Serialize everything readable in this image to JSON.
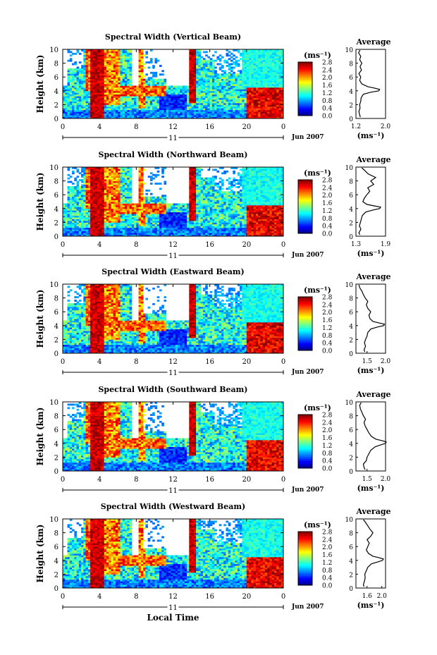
{
  "chart_data": {
    "type": "heatmap",
    "date_label": "Jun 2007",
    "day_label": "11",
    "xlabel_bottom": "Local Time",
    "x_ticks": [
      "0",
      "4",
      "8",
      "12",
      "16",
      "20",
      "0"
    ],
    "xlim": [
      0,
      24
    ],
    "ylabel": "Height (km)",
    "y_ticks": [
      "0",
      "2",
      "4",
      "6",
      "8",
      "10"
    ],
    "ylim": [
      0,
      10
    ],
    "colorbar": {
      "unit": "(ms⁻¹)",
      "range": [
        0.0,
        2.8
      ],
      "ticks": [
        "0.0",
        "0.4",
        "0.8",
        "1.2",
        "1.6",
        "2.0",
        "2.4",
        "2.8"
      ]
    },
    "average_title": "Average",
    "average_xlabel": "(ms⁻¹)",
    "panels": [
      {
        "title": "Spectral Width (Vertical Beam)",
        "avg_xlim": [
          1.2,
          2.0
        ],
        "avg_ticks": [
          "1.2",
          "2.0"
        ],
        "avg_profile": [
          [
            0.2,
            1.32
          ],
          [
            0.5,
            1.3
          ],
          [
            1.0,
            1.28
          ],
          [
            1.5,
            1.31
          ],
          [
            2.0,
            1.3
          ],
          [
            2.5,
            1.33
          ],
          [
            3.0,
            1.34
          ],
          [
            3.5,
            1.4
          ],
          [
            3.8,
            1.6
          ],
          [
            4.0,
            1.82
          ],
          [
            4.2,
            1.84
          ],
          [
            4.4,
            1.7
          ],
          [
            4.6,
            1.52
          ],
          [
            5.0,
            1.36
          ],
          [
            5.5,
            1.3
          ],
          [
            6.0,
            1.33
          ],
          [
            6.5,
            1.28
          ],
          [
            7.0,
            1.35
          ],
          [
            7.5,
            1.31
          ],
          [
            8.0,
            1.36
          ],
          [
            8.5,
            1.3
          ],
          [
            9.0,
            1.33
          ],
          [
            9.5,
            1.27
          ],
          [
            9.9,
            1.31
          ]
        ]
      },
      {
        "title": "Spectral Width (Northward Beam)",
        "avg_xlim": [
          1.3,
          1.9
        ],
        "avg_ticks": [
          "1.3",
          "1.9"
        ],
        "avg_profile": [
          [
            0.2,
            1.38
          ],
          [
            0.5,
            1.36
          ],
          [
            1.0,
            1.4
          ],
          [
            1.5,
            1.37
          ],
          [
            2.0,
            1.39
          ],
          [
            2.5,
            1.41
          ],
          [
            3.0,
            1.43
          ],
          [
            3.5,
            1.5
          ],
          [
            3.8,
            1.65
          ],
          [
            4.0,
            1.78
          ],
          [
            4.2,
            1.8
          ],
          [
            4.4,
            1.66
          ],
          [
            4.6,
            1.52
          ],
          [
            5.0,
            1.44
          ],
          [
            5.5,
            1.47
          ],
          [
            6.0,
            1.52
          ],
          [
            6.5,
            1.58
          ],
          [
            7.0,
            1.54
          ],
          [
            7.5,
            1.66
          ],
          [
            8.0,
            1.6
          ],
          [
            8.5,
            1.7
          ],
          [
            9.0,
            1.55
          ],
          [
            9.5,
            1.48
          ],
          [
            9.9,
            1.42
          ]
        ]
      },
      {
        "title": "Spectral Width (Eastward Beam)",
        "avg_xlim": [
          1.2,
          2.0
        ],
        "avg_ticks": [
          "1.5",
          "2.0"
        ],
        "avg_profile": [
          [
            0.2,
            1.44
          ],
          [
            0.5,
            1.42
          ],
          [
            1.0,
            1.46
          ],
          [
            1.5,
            1.43
          ],
          [
            2.0,
            1.46
          ],
          [
            2.5,
            1.5
          ],
          [
            3.0,
            1.52
          ],
          [
            3.5,
            1.6
          ],
          [
            3.8,
            1.78
          ],
          [
            4.0,
            1.95
          ],
          [
            4.2,
            1.97
          ],
          [
            4.4,
            1.82
          ],
          [
            4.6,
            1.66
          ],
          [
            5.0,
            1.58
          ],
          [
            5.5,
            1.55
          ],
          [
            6.0,
            1.6
          ],
          [
            6.5,
            1.52
          ],
          [
            7.0,
            1.48
          ],
          [
            7.5,
            1.52
          ],
          [
            8.0,
            1.45
          ],
          [
            8.5,
            1.4
          ],
          [
            9.0,
            1.36
          ],
          [
            9.5,
            1.3
          ],
          [
            9.9,
            1.28
          ]
        ]
      },
      {
        "title": "Spectral Width (Southward Beam)",
        "avg_xlim": [
          1.2,
          2.0
        ],
        "avg_ticks": [
          "1.5",
          "2.0"
        ],
        "avg_profile": [
          [
            0.2,
            1.45
          ],
          [
            0.5,
            1.42
          ],
          [
            1.0,
            1.4
          ],
          [
            1.5,
            1.48
          ],
          [
            2.0,
            1.5
          ],
          [
            2.5,
            1.55
          ],
          [
            3.0,
            1.6
          ],
          [
            3.5,
            1.72
          ],
          [
            3.8,
            1.88
          ],
          [
            4.0,
            2.0
          ],
          [
            4.2,
            2.02
          ],
          [
            4.4,
            1.9
          ],
          [
            4.6,
            1.74
          ],
          [
            5.0,
            1.62
          ],
          [
            5.5,
            1.55
          ],
          [
            6.0,
            1.5
          ],
          [
            6.5,
            1.45
          ],
          [
            7.0,
            1.42
          ],
          [
            7.5,
            1.46
          ],
          [
            8.0,
            1.4
          ],
          [
            8.5,
            1.36
          ],
          [
            9.0,
            1.32
          ],
          [
            9.5,
            1.3
          ],
          [
            9.9,
            1.34
          ]
        ]
      },
      {
        "title": "Spectral Width (Westward Beam)",
        "avg_xlim": [
          1.3,
          2.1
        ],
        "avg_ticks": [
          "1.6",
          "2.0"
        ],
        "avg_profile": [
          [
            0.2,
            1.52
          ],
          [
            0.5,
            1.5
          ],
          [
            1.0,
            1.53
          ],
          [
            1.5,
            1.55
          ],
          [
            2.0,
            1.54
          ],
          [
            2.5,
            1.58
          ],
          [
            3.0,
            1.62
          ],
          [
            3.5,
            1.72
          ],
          [
            3.8,
            1.9
          ],
          [
            4.0,
            2.02
          ],
          [
            4.2,
            2.04
          ],
          [
            4.4,
            1.92
          ],
          [
            4.6,
            1.76
          ],
          [
            5.0,
            1.64
          ],
          [
            5.5,
            1.58
          ],
          [
            6.0,
            1.62
          ],
          [
            6.5,
            1.66
          ],
          [
            7.0,
            1.6
          ],
          [
            7.5,
            1.7
          ],
          [
            8.0,
            1.76
          ],
          [
            8.5,
            1.68
          ],
          [
            9.0,
            1.62
          ],
          [
            9.5,
            1.56
          ],
          [
            9.9,
            1.5
          ]
        ]
      }
    ]
  }
}
